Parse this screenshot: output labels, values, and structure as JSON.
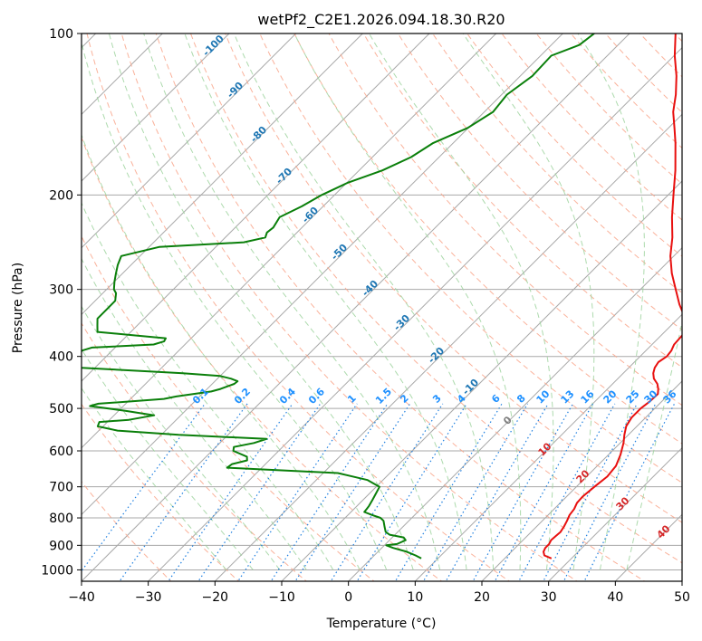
{
  "chart_data": {
    "type": "line",
    "title": "wetPf2_C2E1.2026.094.18.30.R20",
    "xlabel": "Temperature (°C)",
    "ylabel": "Pressure (hPa)",
    "xlim": [
      -40,
      50
    ],
    "ylim": [
      1050,
      100
    ],
    "y_scale": "log",
    "x_ticks": [
      -40,
      -30,
      -20,
      -10,
      0,
      10,
      20,
      30,
      40,
      50
    ],
    "x_tick_labels": [
      "−40",
      "−30",
      "−20",
      "−10",
      "0",
      "10",
      "20",
      "30",
      "40",
      "50"
    ],
    "y_ticks": [
      100,
      200,
      300,
      400,
      500,
      600,
      700,
      800,
      900,
      1000
    ],
    "y_tick_labels": [
      "100",
      "200",
      "300",
      "400",
      "500",
      "600",
      "700",
      "800",
      "900",
      "1000"
    ],
    "grid": true,
    "skew": true,
    "colors": {
      "temperature": "#e8100f",
      "dewpoint": "#0a7f0a",
      "isotherm_grid": "#a8a8a8",
      "dry_adiabat": "#f9a58a",
      "moist_adiabat": "#9fd39f",
      "mixing_ratio": "#1e7fe0",
      "dry_adiabat_label": "#d62728",
      "moist_label": "#1f77b4",
      "mixing_label": "#1e90ff",
      "freezing_label": "#7f7f7f"
    },
    "series": [
      {
        "role": "temperature",
        "pressure": [
          952,
          940,
          925,
          910,
          895,
          880,
          865,
          850,
          830,
          810,
          790,
          770,
          750,
          730,
          700,
          670,
          640,
          610,
          580,
          560,
          540,
          520,
          500,
          485,
          470,
          460,
          450,
          440,
          430,
          420,
          410,
          400,
          390,
          380,
          370,
          360,
          350,
          340,
          320,
          300,
          280,
          260,
          240,
          220,
          200,
          180,
          160,
          150,
          140,
          130,
          120,
          110,
          100
        ],
        "temperature": [
          27.0,
          25.5,
          24.8,
          24.5,
          24.5,
          24.2,
          24.3,
          24.4,
          24.1,
          23.7,
          23.2,
          23.0,
          22.5,
          22.4,
          22.7,
          23.1,
          22.8,
          21.8,
          20.5,
          19.4,
          18.4,
          17.9,
          17.9,
          18.2,
          18.3,
          17.6,
          16.7,
          15.4,
          14.5,
          13.9,
          13.6,
          14.0,
          13.8,
          13.3,
          13.2,
          13.1,
          12.3,
          11.1,
          8.1,
          5.3,
          2.3,
          -0.5,
          -3.0,
          -6.1,
          -9.2,
          -12.6,
          -16.7,
          -19.1,
          -21.7,
          -23.9,
          -26.6,
          -29.9,
          -33.1
        ]
      },
      {
        "role": "dewpoint",
        "pressure": [
          952,
          940,
          925,
          910,
          900,
          895,
          880,
          870,
          860,
          850,
          830,
          810,
          800,
          790,
          780,
          770,
          760,
          740,
          700,
          680,
          660,
          645,
          635,
          625,
          615,
          600,
          590,
          580,
          570,
          560,
          550,
          540,
          530,
          525,
          515,
          505,
          495,
          490,
          485,
          480,
          475,
          465,
          460,
          450,
          445,
          440,
          435,
          430,
          425,
          420,
          415,
          410,
          405,
          400,
          395,
          390,
          385,
          380,
          375,
          370,
          365,
          360,
          350,
          340,
          325,
          315,
          305,
          300,
          290,
          280,
          270,
          260,
          250,
          245,
          240,
          235,
          230,
          220,
          210,
          200,
          190,
          180,
          170,
          160,
          150,
          140,
          130,
          120,
          110,
          105,
          100
        ],
        "dewpoint": [
          7.5,
          6.2,
          4.3,
          1.7,
          0.3,
          1.7,
          2.4,
          1.7,
          -0.8,
          -1.8,
          -2.8,
          -3.8,
          -4.7,
          -6.4,
          -8.0,
          -8.1,
          -8.2,
          -8.6,
          -9.5,
          -12.3,
          -17.8,
          -35.2,
          -35.0,
          -33.3,
          -33.9,
          -36.8,
          -37.3,
          -34.9,
          -33.6,
          -47.4,
          -57.2,
          -60.8,
          -61.2,
          -57.1,
          -54.0,
          -59.0,
          -65.0,
          -64.1,
          -59.4,
          -55.0,
          -53.5,
          -49.0,
          -48.0,
          -46.7,
          -46.6,
          -48.0,
          -50.0,
          -56.0,
          -64.0,
          -72.0,
          -75.0,
          -75.8,
          -75.5,
          -74.8,
          -74.5,
          -74.5,
          -73.5,
          -64.7,
          -63.6,
          -63.8,
          -69.4,
          -75.0,
          -76.0,
          -77.0,
          -77.0,
          -77.0,
          -78.0,
          -78.9,
          -80.0,
          -81.0,
          -82.0,
          -82.8,
          -78.5,
          -66.5,
          -64.0,
          -64.5,
          -64.3,
          -64.9,
          -63.2,
          -61.9,
          -59.9,
          -56.5,
          -54.2,
          -53.0,
          -50.1,
          -48.7,
          -49.2,
          -48.2,
          -48.4,
          -45.8,
          -45.3
        ]
      }
    ],
    "annotations": {
      "moist_adiabat_labels": [
        "-100",
        "-90",
        "-80",
        "-70",
        "-60",
        "-50",
        "-40",
        "-30",
        "-20",
        "-10"
      ],
      "mixing_ratio_labels": [
        "0.1",
        "0.2",
        "0.4",
        "0.6",
        "1",
        "1.5",
        "2",
        "3",
        "4",
        "6",
        "8",
        "10",
        "13",
        "16",
        "20",
        "25",
        "30",
        "36"
      ],
      "freezing_label": "0",
      "dry_adiabat_labels": [
        "10",
        "20",
        "30",
        "40"
      ]
    }
  }
}
